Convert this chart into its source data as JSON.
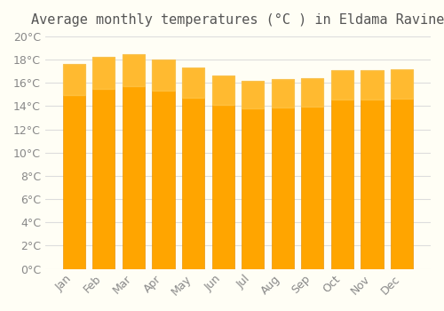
{
  "title": "Average monthly temperatures (°C ) in Eldama Ravine",
  "months": [
    "Jan",
    "Feb",
    "Mar",
    "Apr",
    "May",
    "Jun",
    "Jul",
    "Aug",
    "Sep",
    "Oct",
    "Nov",
    "Dec"
  ],
  "values": [
    17.6,
    18.2,
    18.5,
    18.0,
    17.3,
    16.6,
    16.2,
    16.3,
    16.4,
    17.1,
    17.1,
    17.2
  ],
  "bar_color": "#FFA500",
  "bar_edge_color": "#E8940A",
  "background_color": "#FFFEF5",
  "grid_color": "#DDDDDD",
  "text_color": "#888888",
  "ylim": [
    0,
    20
  ],
  "ytick_step": 2,
  "title_fontsize": 11,
  "tick_fontsize": 9
}
